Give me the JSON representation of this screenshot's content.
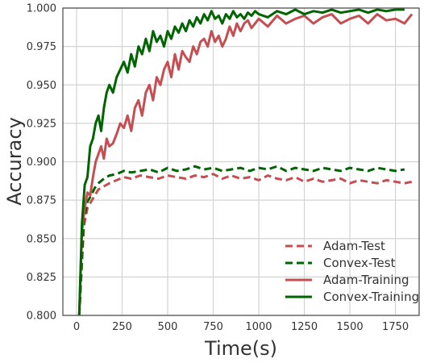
{
  "chart_data": {
    "type": "line",
    "title": "",
    "xlabel": "Time(s)",
    "ylabel": "Accuracy",
    "xlim": [
      -75,
      1880
    ],
    "ylim": [
      0.8,
      1.0
    ],
    "xticks": [
      0,
      250,
      500,
      750,
      1000,
      1250,
      1500,
      1750
    ],
    "yticks": [
      0.8,
      0.825,
      0.85,
      0.875,
      0.9,
      0.925,
      0.95,
      0.975,
      1.0
    ],
    "xtick_labels": [
      "0",
      "250",
      "500",
      "750",
      "1000",
      "1250",
      "1500",
      "1750"
    ],
    "ytick_labels": [
      "0.800",
      "0.825",
      "0.850",
      "0.875",
      "0.900",
      "0.925",
      "0.950",
      "0.975",
      "1.000"
    ],
    "grid": true,
    "legend_position": "bottom-right",
    "series": [
      {
        "name": "Adam-Test",
        "color": "#c44e52",
        "style": "dashed",
        "x": [
          15,
          40,
          60,
          80,
          100,
          120,
          150,
          180,
          220,
          260,
          300,
          350,
          400,
          450,
          500,
          550,
          600,
          650,
          700,
          750,
          800,
          850,
          900,
          950,
          1000,
          1050,
          1100,
          1150,
          1200,
          1250,
          1300,
          1350,
          1400,
          1450,
          1500,
          1550,
          1600,
          1650,
          1700,
          1750,
          1800,
          1840
        ],
        "y": [
          0.8,
          0.858,
          0.87,
          0.874,
          0.878,
          0.882,
          0.884,
          0.886,
          0.888,
          0.89,
          0.889,
          0.891,
          0.89,
          0.889,
          0.891,
          0.89,
          0.889,
          0.891,
          0.89,
          0.892,
          0.889,
          0.891,
          0.889,
          0.89,
          0.888,
          0.891,
          0.889,
          0.888,
          0.89,
          0.887,
          0.889,
          0.887,
          0.888,
          0.889,
          0.886,
          0.888,
          0.887,
          0.886,
          0.888,
          0.887,
          0.886,
          0.887
        ]
      },
      {
        "name": "Convex-Test",
        "color": "#006400",
        "style": "dashed",
        "x": [
          15,
          40,
          60,
          80,
          100,
          120,
          150,
          180,
          220,
          260,
          300,
          350,
          400,
          450,
          500,
          550,
          600,
          650,
          700,
          750,
          800,
          850,
          900,
          950,
          1000,
          1050,
          1100,
          1150,
          1200,
          1250,
          1300,
          1350,
          1400,
          1450,
          1500,
          1550,
          1600,
          1650,
          1700,
          1750,
          1800
        ],
        "y": [
          0.8,
          0.862,
          0.874,
          0.878,
          0.883,
          0.886,
          0.889,
          0.891,
          0.892,
          0.894,
          0.893,
          0.894,
          0.895,
          0.893,
          0.896,
          0.894,
          0.895,
          0.897,
          0.895,
          0.896,
          0.894,
          0.895,
          0.896,
          0.894,
          0.896,
          0.895,
          0.897,
          0.894,
          0.896,
          0.895,
          0.894,
          0.896,
          0.895,
          0.894,
          0.896,
          0.895,
          0.894,
          0.896,
          0.895,
          0.894,
          0.895
        ]
      },
      {
        "name": "Adam-Training",
        "color": "#c44e52",
        "style": "solid",
        "x": [
          15,
          30,
          45,
          60,
          75,
          90,
          105,
          120,
          135,
          150,
          165,
          180,
          200,
          220,
          240,
          260,
          280,
          300,
          320,
          340,
          360,
          380,
          400,
          420,
          440,
          460,
          480,
          500,
          520,
          540,
          560,
          580,
          600,
          620,
          640,
          660,
          680,
          700,
          720,
          740,
          760,
          780,
          800,
          820,
          840,
          860,
          880,
          900,
          920,
          940,
          960,
          980,
          1000,
          1050,
          1100,
          1150,
          1200,
          1250,
          1300,
          1350,
          1400,
          1450,
          1500,
          1550,
          1600,
          1650,
          1700,
          1750,
          1800,
          1840
        ],
        "y": [
          0.8,
          0.855,
          0.87,
          0.88,
          0.878,
          0.89,
          0.9,
          0.905,
          0.91,
          0.902,
          0.915,
          0.91,
          0.912,
          0.918,
          0.925,
          0.922,
          0.93,
          0.92,
          0.935,
          0.94,
          0.93,
          0.945,
          0.95,
          0.94,
          0.955,
          0.95,
          0.96,
          0.965,
          0.955,
          0.97,
          0.96,
          0.972,
          0.968,
          0.965,
          0.975,
          0.97,
          0.978,
          0.98,
          0.975,
          0.985,
          0.978,
          0.982,
          0.975,
          0.98,
          0.988,
          0.982,
          0.99,
          0.985,
          0.99,
          0.992,
          0.987,
          0.99,
          0.993,
          0.988,
          0.995,
          0.99,
          0.993,
          0.995,
          0.99,
          0.994,
          0.996,
          0.99,
          0.993,
          0.995,
          0.99,
          0.996,
          0.992,
          0.993,
          0.99,
          0.996
        ]
      },
      {
        "name": "Convex-Training",
        "color": "#006400",
        "style": "solid",
        "x": [
          15,
          30,
          45,
          60,
          75,
          90,
          105,
          120,
          135,
          150,
          165,
          180,
          200,
          220,
          240,
          260,
          280,
          300,
          320,
          340,
          360,
          380,
          400,
          420,
          440,
          460,
          480,
          500,
          520,
          540,
          560,
          580,
          600,
          620,
          640,
          660,
          680,
          700,
          720,
          740,
          760,
          780,
          800,
          820,
          840,
          860,
          880,
          900,
          920,
          940,
          960,
          980,
          1000,
          1050,
          1100,
          1150,
          1200,
          1250,
          1300,
          1350,
          1400,
          1450,
          1500,
          1550,
          1600,
          1650,
          1700,
          1750,
          1800
        ],
        "y": [
          0.8,
          0.86,
          0.885,
          0.89,
          0.91,
          0.915,
          0.925,
          0.93,
          0.92,
          0.935,
          0.945,
          0.95,
          0.945,
          0.955,
          0.96,
          0.965,
          0.958,
          0.97,
          0.962,
          0.975,
          0.97,
          0.98,
          0.972,
          0.985,
          0.978,
          0.982,
          0.975,
          0.985,
          0.98,
          0.988,
          0.984,
          0.99,
          0.985,
          0.992,
          0.988,
          0.994,
          0.99,
          0.996,
          0.992,
          0.998,
          0.993,
          0.995,
          0.99,
          0.996,
          0.993,
          0.998,
          0.994,
          0.996,
          0.993,
          0.997,
          0.995,
          0.998,
          0.996,
          0.994,
          0.998,
          0.996,
          0.999,
          0.996,
          0.998,
          0.997,
          0.999,
          0.997,
          0.998,
          0.999,
          0.997,
          0.999,
          0.998,
          0.999,
          0.999
        ]
      }
    ]
  }
}
